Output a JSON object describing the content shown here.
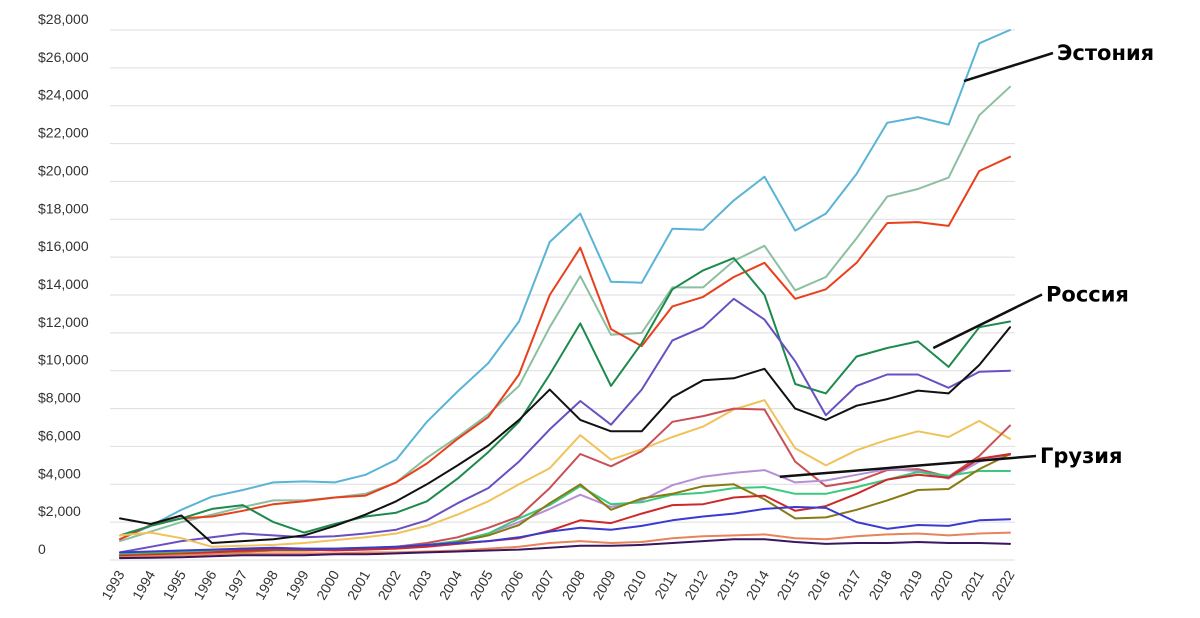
{
  "chart_data": {
    "type": "line",
    "title": "",
    "xlabel": "",
    "ylabel": "",
    "x": [
      "1993",
      "1994",
      "1995",
      "1996",
      "1997",
      "1998",
      "1999",
      "2000",
      "2001",
      "2002",
      "2003",
      "2004",
      "2005",
      "2006",
      "2007",
      "2008",
      "2009",
      "2010",
      "2011",
      "2012",
      "2013",
      "2014",
      "2015",
      "2016",
      "2017",
      "2018",
      "2019",
      "2020",
      "2021",
      "2022"
    ],
    "ylim": [
      0,
      28000
    ],
    "yticks": [
      {
        "value": 0,
        "label": "0"
      },
      {
        "value": 2000,
        "label": "$2,000"
      },
      {
        "value": 4000,
        "label": "$4,000"
      },
      {
        "value": 6000,
        "label": "$6,000"
      },
      {
        "value": 8000,
        "label": "$8,000"
      },
      {
        "value": 10000,
        "label": "$10,000"
      },
      {
        "value": 12000,
        "label": "$12,000"
      },
      {
        "value": 14000,
        "label": "$14,000"
      },
      {
        "value": 16000,
        "label": "$16,000"
      },
      {
        "value": 18000,
        "label": "$18,000"
      },
      {
        "value": 20000,
        "label": "$20,000"
      },
      {
        "value": 22000,
        "label": "$22,000"
      },
      {
        "value": 24000,
        "label": "$24,000"
      },
      {
        "value": 26000,
        "label": "$26,000"
      },
      {
        "value": 28000,
        "label": "$28,000"
      }
    ],
    "grid": true,
    "series": [
      {
        "color": "#5ab4d6",
        "values": [
          1100,
          1800,
          2650,
          3350,
          3700,
          4100,
          4150,
          4100,
          4500,
          5300,
          7300,
          8900,
          10400,
          12600,
          16800,
          18300,
          14700,
          14650,
          17500,
          17450,
          19000,
          20250,
          17400,
          18300,
          20400,
          23100,
          23400,
          23000,
          27300,
          28000
        ]
      },
      {
        "color": "#8cbfa0",
        "values": [
          1000,
          1500,
          2000,
          2400,
          2800,
          3150,
          3150,
          3300,
          3500,
          4100,
          5400,
          6500,
          7700,
          9200,
          12300,
          15000,
          11900,
          12000,
          14400,
          14400,
          15800,
          16600,
          14250,
          14950,
          17000,
          19200,
          19600,
          20200,
          23500,
          25000
        ]
      },
      {
        "color": "#e8401c",
        "values": [
          1100,
          1850,
          2200,
          2300,
          2600,
          2950,
          3100,
          3300,
          3400,
          4100,
          5100,
          6400,
          7550,
          9800,
          14000,
          16500,
          12200,
          11300,
          13400,
          13900,
          14950,
          15700,
          13800,
          14300,
          15700,
          17800,
          17850,
          17650,
          20550,
          21300
        ]
      },
      {
        "color": "#1d8a4d",
        "values": [
          1300,
          1800,
          2200,
          2700,
          2900,
          2000,
          1450,
          1900,
          2300,
          2500,
          3100,
          4300,
          5700,
          7300,
          9800,
          12500,
          9200,
          11450,
          14300,
          15300,
          15950,
          14000,
          9300,
          8800,
          10750,
          11200,
          11550,
          10200,
          12300,
          12600
        ]
      },
      {
        "color": "#6a4fc3",
        "values": [
          400,
          700,
          1000,
          1200,
          1400,
          1300,
          1200,
          1250,
          1400,
          1600,
          2100,
          3000,
          3800,
          5200,
          6900,
          8400,
          7150,
          9000,
          11600,
          12300,
          13800,
          12700,
          10500,
          7650,
          9200,
          9800,
          9800,
          9100,
          9950,
          10000
        ]
      },
      {
        "color": "#111111",
        "values": [
          2200,
          1900,
          2350,
          900,
          1000,
          1100,
          1300,
          1800,
          2400,
          3100,
          4000,
          5000,
          6050,
          7400,
          9000,
          7400,
          6800,
          6800,
          8600,
          9500,
          9600,
          10100,
          8000,
          7400,
          8150,
          8500,
          8950,
          8800,
          10300,
          12300
        ]
      },
      {
        "color": "#f0c35a",
        "values": [
          1300,
          1450,
          1150,
          700,
          750,
          800,
          900,
          1050,
          1200,
          1400,
          1800,
          2400,
          3100,
          4000,
          4850,
          6600,
          5300,
          5850,
          6500,
          7050,
          7950,
          8450,
          5900,
          5000,
          5800,
          6350,
          6800,
          6500,
          7350,
          6400
        ]
      },
      {
        "color": "#c94f55",
        "values": [
          300,
          350,
          400,
          500,
          600,
          550,
          500,
          550,
          600,
          700,
          900,
          1200,
          1700,
          2300,
          3800,
          5600,
          4950,
          5750,
          7300,
          7600,
          8000,
          7950,
          5200,
          3900,
          4150,
          4750,
          4800,
          4400,
          5500,
          7100
        ]
      },
      {
        "color": "#b58fd6",
        "values": [
          250,
          300,
          350,
          400,
          450,
          500,
          500,
          550,
          600,
          700,
          800,
          1000,
          1400,
          2000,
          2700,
          3450,
          2800,
          3150,
          3950,
          4400,
          4600,
          4750,
          4100,
          4200,
          4500,
          4800,
          4700,
          4300,
          5200,
          5550
        ]
      },
      {
        "color": "#3ac97f",
        "values": [
          300,
          350,
          400,
          450,
          500,
          550,
          550,
          600,
          650,
          700,
          800,
          1000,
          1400,
          2200,
          2900,
          3900,
          2950,
          3050,
          3450,
          3550,
          3800,
          3850,
          3500,
          3500,
          3850,
          4250,
          4650,
          4450,
          4700,
          4700
        ]
      },
      {
        "color": "#8a7a14",
        "values": [
          250,
          300,
          350,
          400,
          450,
          500,
          500,
          550,
          600,
          650,
          750,
          950,
          1300,
          1850,
          3000,
          4000,
          2650,
          3250,
          3500,
          3900,
          4000,
          3200,
          2200,
          2250,
          2650,
          3150,
          3700,
          3750,
          4800,
          5600
        ]
      },
      {
        "color": "#cc2a2a",
        "values": [
          200,
          250,
          300,
          400,
          500,
          550,
          550,
          500,
          550,
          600,
          700,
          850,
          1000,
          1150,
          1550,
          2100,
          1950,
          2450,
          2900,
          2950,
          3300,
          3400,
          2600,
          2850,
          3500,
          4250,
          4500,
          4350,
          5350,
          5600
        ]
      },
      {
        "color": "#3a3ad0",
        "values": [
          400,
          450,
          500,
          550,
          600,
          650,
          600,
          600,
          650,
          700,
          800,
          900,
          1000,
          1200,
          1500,
          1700,
          1600,
          1800,
          2100,
          2300,
          2450,
          2700,
          2800,
          2750,
          2000,
          1650,
          1850,
          1800,
          2100,
          2150
        ]
      },
      {
        "color": "#e8835a",
        "values": [
          150,
          200,
          250,
          300,
          350,
          350,
          350,
          350,
          400,
          400,
          450,
          500,
          600,
          700,
          900,
          1000,
          900,
          950,
          1150,
          1250,
          1300,
          1350,
          1150,
          1100,
          1250,
          1350,
          1400,
          1300,
          1400,
          1450
        ]
      },
      {
        "color": "#3a1660",
        "values": [
          100,
          120,
          150,
          200,
          250,
          250,
          250,
          300,
          300,
          350,
          400,
          450,
          500,
          550,
          650,
          750,
          750,
          800,
          900,
          1000,
          1100,
          1100,
          950,
          850,
          900,
          900,
          950,
          900,
          900,
          850
        ]
      }
    ],
    "annotations": [
      {
        "text": "Эстония",
        "series_index": 0,
        "from": {
          "x": "2020.5",
          "y": 25300
        }
      },
      {
        "text": "Россия",
        "series_index": 3,
        "from": {
          "x": "2019.5",
          "y": 11200
        }
      },
      {
        "text": "Грузия",
        "series_index": 9,
        "from": {
          "x": "2014.5",
          "y": 4400
        }
      }
    ]
  }
}
